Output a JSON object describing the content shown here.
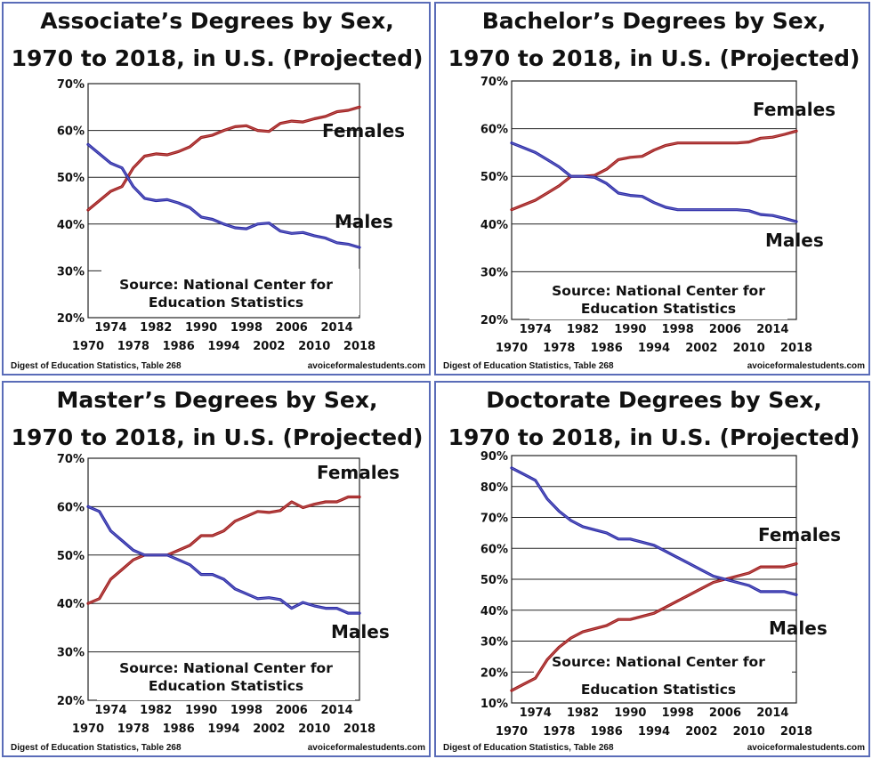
{
  "chart_data": [
    {
      "type": "line",
      "title_lines": [
        "Associate’s Degrees by Sex,",
        "1970 to 2018, in U.S. (Projected)"
      ],
      "x": [
        1970,
        1972,
        1974,
        1976,
        1978,
        1980,
        1982,
        1984,
        1986,
        1988,
        1990,
        1992,
        1994,
        1996,
        1998,
        2000,
        2002,
        2004,
        2006,
        2008,
        2010,
        2012,
        2014,
        2016,
        2018
      ],
      "series": [
        {
          "name": "Females",
          "color": "#a01a1a",
          "values": [
            43,
            45,
            47,
            48,
            52,
            54.5,
            55,
            54.8,
            55.5,
            56.5,
            58.5,
            59,
            60,
            60.8,
            61,
            60,
            59.8,
            61.5,
            62,
            61.8,
            62.5,
            63,
            64,
            64.3,
            65
          ]
        },
        {
          "name": "Males",
          "color": "#2a2aa8",
          "values": [
            57,
            55,
            53,
            52,
            48,
            45.5,
            45,
            45.2,
            44.5,
            43.5,
            41.5,
            41,
            40,
            39.2,
            39,
            40,
            40.2,
            38.5,
            38,
            38.2,
            37.5,
            37,
            36,
            35.7,
            35
          ]
        }
      ],
      "ylim": [
        20,
        70
      ],
      "yticks": [
        "70%",
        "60%",
        "50%",
        "40%",
        "30%",
        "20%"
      ],
      "xticks_top": [
        "1974",
        "1982",
        "1990",
        "1998",
        "2006",
        "2014"
      ],
      "xticks_bottom": [
        "1970",
        "1978",
        "1986",
        "1994",
        "2002",
        "2010",
        "2018"
      ],
      "source_lines": [
        "Source: National Center for",
        "Education Statistics"
      ],
      "note_left": "Digest of Education Statistics, Table 268",
      "note_right": "avoiceformalestudents.com"
    },
    {
      "type": "line",
      "title_lines": [
        "Bachelor’s Degrees by Sex,",
        "1970 to 2018, in U.S. (Projected)"
      ],
      "x": [
        1970,
        1972,
        1974,
        1976,
        1978,
        1980,
        1982,
        1984,
        1986,
        1988,
        1990,
        1992,
        1994,
        1996,
        1998,
        2000,
        2002,
        2004,
        2006,
        2008,
        2010,
        2012,
        2014,
        2016,
        2018
      ],
      "series": [
        {
          "name": "Females",
          "color": "#a01a1a",
          "values": [
            43,
            44,
            45,
            46.5,
            48,
            50,
            50,
            50.2,
            51.5,
            53.5,
            54,
            54.2,
            55.5,
            56.5,
            57,
            57,
            57,
            57,
            57,
            57,
            57.2,
            58,
            58.2,
            58.8,
            59.5
          ]
        },
        {
          "name": "Males",
          "color": "#2a2aa8",
          "values": [
            57,
            56,
            55,
            53.5,
            52,
            50,
            50,
            49.8,
            48.5,
            46.5,
            46,
            45.8,
            44.5,
            43.5,
            43,
            43,
            43,
            43,
            43,
            43,
            42.8,
            42,
            41.8,
            41.2,
            40.5
          ]
        }
      ],
      "ylim": [
        20,
        70
      ],
      "yticks": [
        "70%",
        "60%",
        "50%",
        "40%",
        "30%",
        "20%"
      ],
      "xticks_top": [
        "1974",
        "1982",
        "1990",
        "1998",
        "2006",
        "2014"
      ],
      "xticks_bottom": [
        "1970",
        "1978",
        "1986",
        "1994",
        "2002",
        "2010",
        "2018"
      ],
      "source_lines": [
        "Source: National Center for",
        "Education Statistics"
      ],
      "note_left": "Digest of Education Statistics, Table 268",
      "note_right": "avoiceformalestudents.com"
    },
    {
      "type": "line",
      "title_lines": [
        "Master’s Degrees by Sex,",
        "1970 to 2018, in U.S. (Projected)"
      ],
      "x": [
        1970,
        1972,
        1974,
        1976,
        1978,
        1980,
        1982,
        1984,
        1986,
        1988,
        1990,
        1992,
        1994,
        1996,
        1998,
        2000,
        2002,
        2004,
        2006,
        2008,
        2010,
        2012,
        2014,
        2016,
        2018
      ],
      "series": [
        {
          "name": "Females",
          "color": "#a01a1a",
          "values": [
            40,
            41,
            45,
            47,
            49,
            50,
            50,
            50,
            51,
            52,
            54,
            54,
            55,
            57,
            58,
            59,
            58.8,
            59.2,
            61,
            59.8,
            60.5,
            61,
            61,
            62,
            62
          ]
        },
        {
          "name": "Males",
          "color": "#2a2aa8",
          "values": [
            60,
            59,
            55,
            53,
            51,
            50,
            50,
            50,
            49,
            48,
            46,
            46,
            45,
            43,
            42,
            41,
            41.2,
            40.8,
            39,
            40.2,
            39.5,
            39,
            39,
            38,
            38
          ]
        }
      ],
      "ylim": [
        20,
        70
      ],
      "yticks": [
        "70%",
        "60%",
        "50%",
        "40%",
        "30%",
        "20%"
      ],
      "xticks_top": [
        "1974",
        "1982",
        "1990",
        "1998",
        "2006",
        "2014"
      ],
      "xticks_bottom": [
        "1970",
        "1978",
        "1986",
        "1994",
        "2002",
        "2010",
        "2018"
      ],
      "source_lines": [
        "Source: National Center for",
        "Education Statistics"
      ],
      "note_left": "Digest of Education Statistics, Table 268",
      "note_right": "avoiceformalestudents.com"
    },
    {
      "type": "line",
      "title_lines": [
        "Doctorate Degrees by Sex,",
        "1970 to 2018, in U.S. (Projected)"
      ],
      "x": [
        1970,
        1972,
        1974,
        1976,
        1978,
        1980,
        1982,
        1984,
        1986,
        1988,
        1990,
        1992,
        1994,
        1996,
        1998,
        2000,
        2002,
        2004,
        2006,
        2008,
        2010,
        2012,
        2014,
        2016,
        2018
      ],
      "series": [
        {
          "name": "Females",
          "color": "#a01a1a",
          "values": [
            14,
            16,
            18,
            24,
            28,
            31,
            33,
            34,
            35,
            37,
            37,
            38,
            39,
            41,
            43,
            45,
            47,
            49,
            50,
            51,
            52,
            54,
            54,
            54,
            55
          ]
        },
        {
          "name": "Males",
          "color": "#2a2aa8",
          "values": [
            86,
            84,
            82,
            76,
            72,
            69,
            67,
            66,
            65,
            63,
            63,
            62,
            61,
            59,
            57,
            55,
            53,
            51,
            50,
            49,
            48,
            46,
            46,
            46,
            45
          ]
        }
      ],
      "ylim": [
        10,
        90
      ],
      "yticks": [
        "90%",
        "80%",
        "70%",
        "60%",
        "50%",
        "40%",
        "30%",
        "20%",
        "10%"
      ],
      "xticks_top": [
        "1974",
        "1982",
        "1990",
        "1998",
        "2006",
        "2014"
      ],
      "xticks_bottom": [
        "1970",
        "1978",
        "1986",
        "1994",
        "2002",
        "2010",
        "2018"
      ],
      "source_lines": [
        "Source: National Center for",
        "Education Statistics"
      ],
      "note_left": "Digest of Education Statistics, Table 268",
      "note_right": "avoiceformalestudents.com"
    }
  ]
}
